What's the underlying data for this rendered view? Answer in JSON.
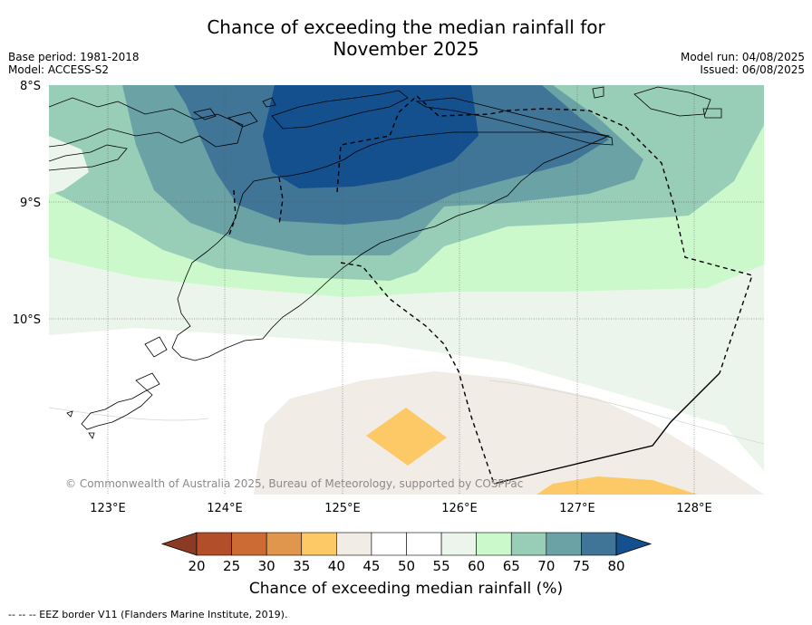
{
  "title": {
    "line1": "Chance of exceeding the median rainfall for",
    "line2": "November 2025"
  },
  "meta": {
    "base_period": "Base period: 1981-2018",
    "model": "Model: ACCESS-S2",
    "model_run": "Model run: 04/08/2025",
    "issued": "Issued: 06/08/2025"
  },
  "map": {
    "lat_labels": [
      "8°S",
      "9°S",
      "10°S"
    ],
    "lon_labels": [
      "123°E",
      "124°E",
      "125°E",
      "126°E",
      "127°E",
      "128°E"
    ],
    "copyright": "© Commonwealth of Australia 2025, Bureau of Meteorology, supported by COSPPac",
    "border_color": "#000000",
    "eez_style": "dashed"
  },
  "colorbar": {
    "ticks": [
      "20",
      "25",
      "30",
      "35",
      "40",
      "45",
      "50",
      "55",
      "60",
      "65",
      "70",
      "75",
      "80"
    ],
    "colors": [
      "#8b3a23",
      "#b34e2a",
      "#cc6c34",
      "#e0964d",
      "#fdc966",
      "#f1ece6",
      "#ffffff",
      "#ffffff",
      "#ebf5eb",
      "#ccf9cc",
      "#98cdb7",
      "#6ba2a6",
      "#417598",
      "#13508d"
    ],
    "label": "Chance of exceeding median rainfall (%)"
  },
  "footnote": "--  --  -- EEZ border V11 (Flanders Marine Institute, 2019)."
}
